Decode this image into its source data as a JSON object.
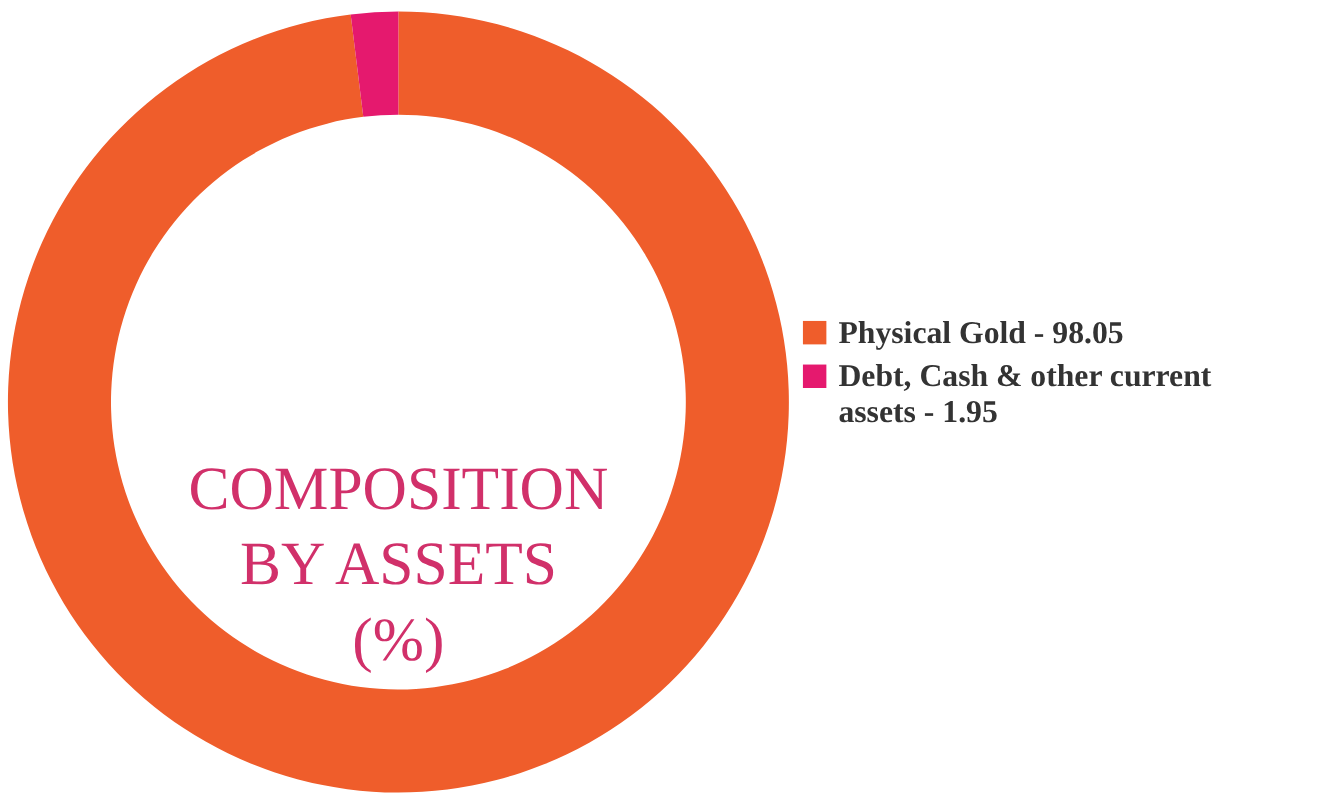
{
  "chart_data": {
    "type": "donut",
    "title": "COMPOSITION BY ASSETS (%)",
    "categories": [
      "Physical Gold - 98.05",
      "Debt, Cash & other current assets - 1.95"
    ],
    "values": [
      98.05,
      1.95
    ],
    "colors": [
      "#ef5d2b",
      "#e5196e"
    ],
    "legend": "right"
  }
}
